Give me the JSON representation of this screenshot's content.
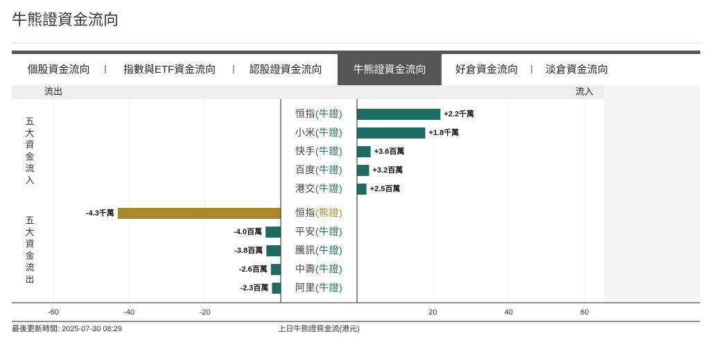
{
  "page": {
    "title": "牛熊證資金流向",
    "tabs": [
      "個股資金流向",
      "指數與ETF資金流向",
      "認股證資金流向",
      "牛熊證資金流向",
      "好倉資金流向",
      "淡倉資金流向"
    ],
    "active_tab": 3,
    "updated": "最後更新時間: 2025-07-30 08:29"
  },
  "chart_data": {
    "type": "bar",
    "title": "上日牛熊證資金流(港元)",
    "left_label": "流出",
    "right_label": "流入",
    "group_labels": [
      "五大資金流入",
      "五大資金流出"
    ],
    "categories": [
      "恒指(牛證)",
      "小米(牛證)",
      "快手(牛證)",
      "百度(牛證)",
      "港交(牛證)",
      "恒指(熊證)",
      "平安(牛證)",
      "騰訊(牛證)",
      "中壽(牛證)",
      "阿里(牛證)"
    ],
    "values": [
      22,
      18,
      3.6,
      3.2,
      2.5,
      -43,
      -4.0,
      -3.8,
      -2.6,
      -2.3
    ],
    "value_labels": [
      "+2.2千萬",
      "+1.8千萬",
      "+3.6百萬",
      "+3.2百萬",
      "+2.5百萬",
      "-4.3千萬",
      "-4.0百萬",
      "-3.8百萬",
      "-2.6百萬",
      "-2.3百萬"
    ],
    "colors": [
      "#1e6b63",
      "#1e6b63",
      "#1e6b63",
      "#1e6b63",
      "#1e6b63",
      "#a8892b",
      "#1e6b63",
      "#1e6b63",
      "#1e6b63",
      "#1e6b63"
    ],
    "xlim": [
      -71,
      65
    ],
    "xticks": [
      -60,
      -40,
      -20,
      20,
      40,
      60
    ],
    "grid": true
  }
}
